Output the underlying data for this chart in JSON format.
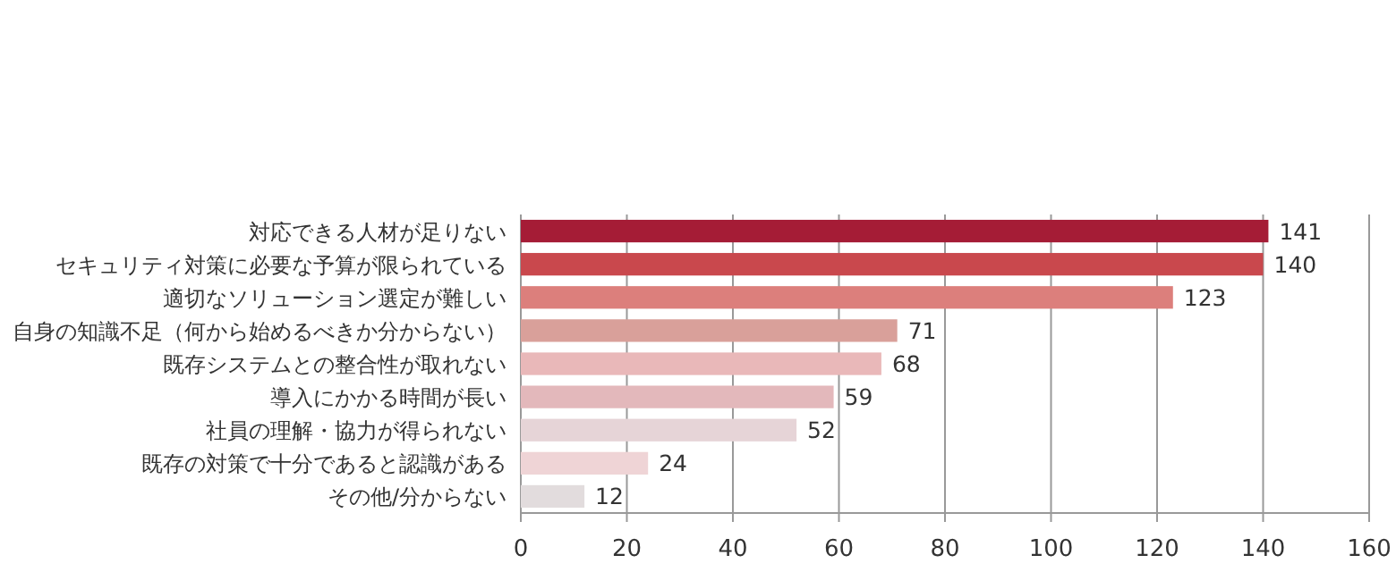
{
  "chart_data": {
    "type": "bar",
    "orientation": "horizontal",
    "categories": [
      "対応できる人材が足りない",
      "セキュリティ対策に必要な予算が限られている",
      "適切なソリューション選定が難しい",
      "自身の知識不足（何から始めるべきか分からない）",
      "既存システムとの整合性が取れない",
      "導入にかかる時間が長い",
      "社員の理解・協力が得られない",
      "既存の対策で十分であると認識がある",
      "その他/分からない"
    ],
    "values": [
      141,
      140,
      123,
      71,
      68,
      59,
      52,
      24,
      12
    ],
    "colors": [
      "#a51c36",
      "#c9484d",
      "#dc7f7c",
      "#d9a09a",
      "#e9b8b9",
      "#e3b8bb",
      "#e6d4d7",
      "#efd4d6",
      "#e2dcdd"
    ],
    "xlim": [
      0,
      160
    ],
    "xticks": [
      0,
      20,
      40,
      60,
      80,
      100,
      120,
      140,
      160
    ],
    "grid": "x",
    "data_labels": true
  }
}
